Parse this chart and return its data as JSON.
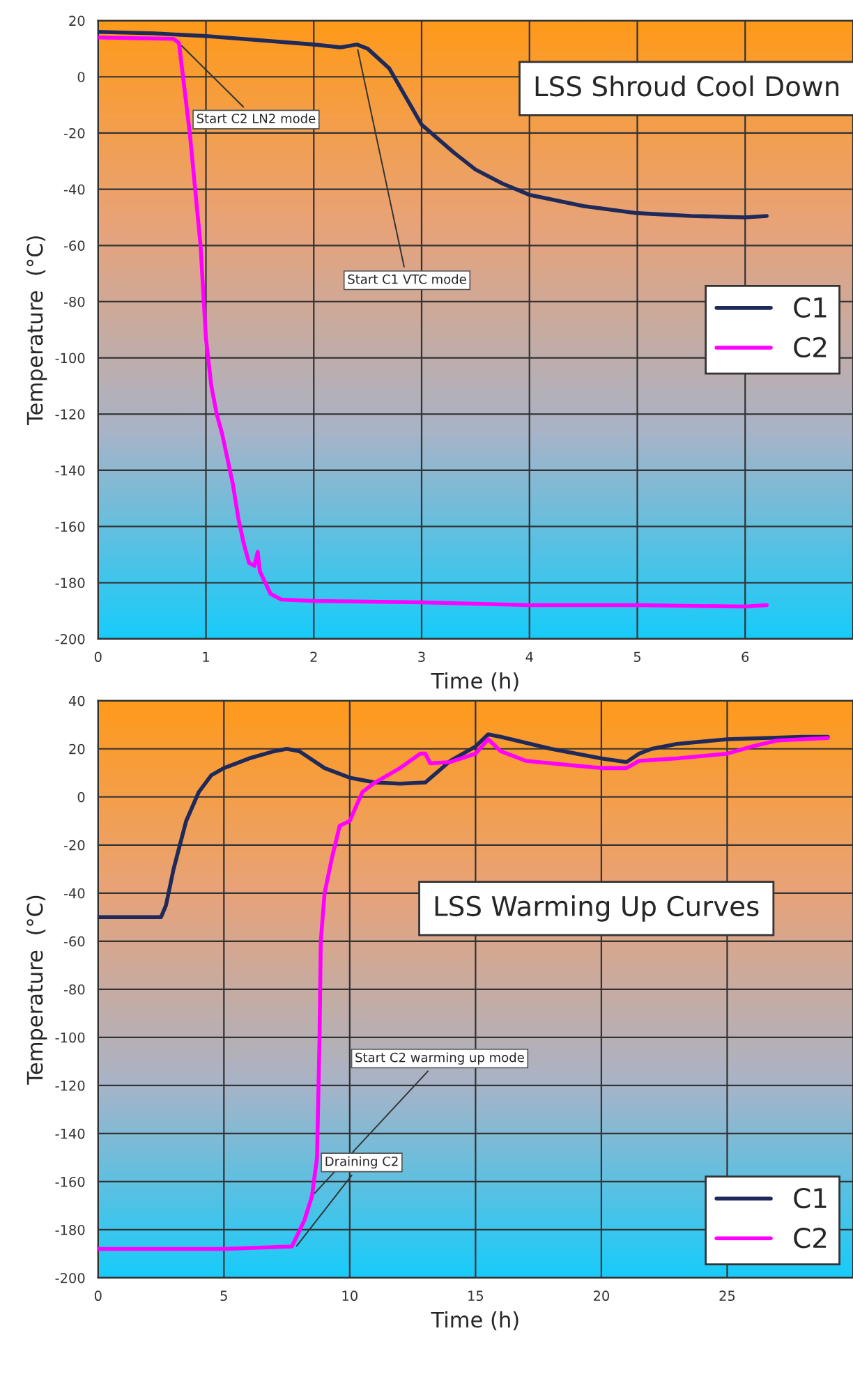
{
  "chart_data": [
    {
      "type": "line",
      "title": "LSS Shroud Cool Down",
      "xlabel": "Time (h)",
      "ylabel": "Temperature  (°C)",
      "xlim": [
        0,
        7
      ],
      "xticks": [
        0,
        1,
        2,
        3,
        4,
        5,
        6
      ],
      "ylim": [
        -200,
        20
      ],
      "yticks": [
        -200,
        -180,
        -160,
        -140,
        -120,
        -100,
        -80,
        -60,
        -40,
        -20,
        0,
        20
      ],
      "grid": true,
      "legend": "right",
      "annotations": [
        {
          "text": "Start C2 LN2 mode",
          "x": 0.75,
          "y": 12
        },
        {
          "text": "Start C1 VTC mode",
          "x": 2.4,
          "y": 11
        }
      ],
      "series": [
        {
          "name": "C1",
          "color": "#1f2a5a",
          "x": [
            0,
            0.5,
            1,
            1.5,
            2,
            2.25,
            2.4,
            2.5,
            2.7,
            3,
            3.3,
            3.5,
            3.75,
            4,
            4.5,
            5,
            5.5,
            6,
            6.2
          ],
          "values": [
            16,
            15.5,
            14.5,
            13,
            11.5,
            10.5,
            11.5,
            10,
            3,
            -17,
            -27,
            -33,
            -38,
            -42,
            -46,
            -48.5,
            -49.5,
            -50,
            -49.5
          ]
        },
        {
          "name": "C2",
          "color": "#ff00ff",
          "x": [
            0,
            0.7,
            0.75,
            0.85,
            0.95,
            1.0,
            1.05,
            1.1,
            1.15,
            1.25,
            1.3,
            1.35,
            1.4,
            1.45,
            1.48,
            1.5,
            1.6,
            1.7,
            2,
            3,
            4,
            5,
            6,
            6.2
          ],
          "values": [
            14,
            13.5,
            12,
            -20,
            -60,
            -93,
            -110,
            -120,
            -127,
            -145,
            -157,
            -166,
            -173,
            -174,
            -169,
            -176,
            -184,
            -186,
            -186.5,
            -187,
            -188,
            -188,
            -188.5,
            -188
          ]
        }
      ]
    },
    {
      "type": "line",
      "title": "LSS Warming Up Curves",
      "xlabel": "Time (h)",
      "ylabel": "Temperature  (°C)",
      "xlim": [
        0,
        30
      ],
      "xticks": [
        0,
        5,
        10,
        15,
        20,
        25
      ],
      "ylim": [
        -200,
        40
      ],
      "yticks": [
        -200,
        -180,
        -160,
        -140,
        -120,
        -100,
        -80,
        -60,
        -40,
        -20,
        0,
        20,
        40
      ],
      "grid": true,
      "legend": "lower right",
      "annotations": [
        {
          "text": "Start C2 warming up mode",
          "x": 8.5,
          "y": -166
        },
        {
          "text": "Draining C2",
          "x": 7.8,
          "y": -188
        }
      ],
      "series": [
        {
          "name": "C1",
          "color": "#1f2a5a",
          "x": [
            0,
            2,
            2.5,
            2.7,
            3,
            3.5,
            4,
            4.5,
            5,
            6,
            7,
            7.5,
            8,
            9,
            10,
            11,
            12,
            13,
            14,
            15,
            15.5,
            16,
            18,
            20,
            21,
            21.5,
            22,
            23,
            25,
            28,
            29
          ],
          "values": [
            -50,
            -50,
            -50,
            -45,
            -30,
            -10,
            2,
            9,
            12,
            16,
            19,
            20,
            19,
            12,
            8,
            6,
            5.5,
            6,
            15,
            21,
            26,
            25,
            20,
            16,
            14.5,
            18,
            20,
            22,
            24,
            25,
            25
          ]
        },
        {
          "name": "C2",
          "color": "#ff00ff",
          "x": [
            0,
            5,
            7.7,
            8.2,
            8.5,
            8.7,
            8.8,
            8.85,
            9,
            9.3,
            9.6,
            10,
            10.5,
            11,
            12,
            12.8,
            13,
            13.2,
            14,
            15,
            15.5,
            16,
            17,
            19,
            20,
            21,
            21.5,
            23,
            25,
            26,
            27,
            29
          ],
          "values": [
            -188,
            -188,
            -187,
            -176,
            -166,
            -150,
            -100,
            -60,
            -40,
            -25,
            -12,
            -10,
            2,
            6,
            12,
            18,
            18,
            14,
            14.5,
            18,
            24,
            19,
            15,
            13,
            12,
            12,
            15,
            16,
            18,
            21,
            23.5,
            24.5
          ]
        }
      ]
    }
  ]
}
